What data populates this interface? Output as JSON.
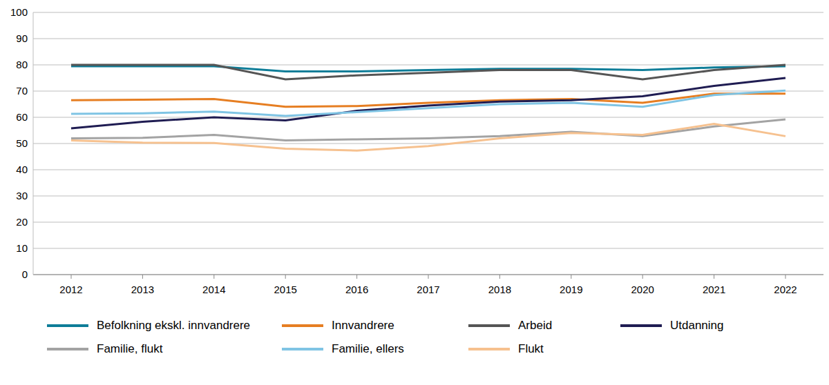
{
  "chart_data": {
    "type": "line",
    "categories": [
      "2012",
      "2013",
      "2014",
      "2015",
      "2016",
      "2017",
      "2018",
      "2019",
      "2020",
      "2021",
      "2022"
    ],
    "series": [
      {
        "name": "Befolkning ekskl. innvandrere",
        "color": "#0e7d98",
        "values": [
          79.5,
          79.5,
          79.5,
          77.5,
          77.5,
          78,
          78.5,
          78.5,
          78,
          79,
          79.5
        ]
      },
      {
        "name": "Innvandrere",
        "color": "#e67e22",
        "values": [
          66.5,
          66.7,
          67,
          64,
          64.3,
          65.5,
          66.5,
          67,
          65.5,
          69,
          69
        ]
      },
      {
        "name": "Arbeid",
        "color": "#555555",
        "values": [
          80,
          80,
          80,
          74.5,
          76,
          77,
          78,
          78,
          74.5,
          78,
          80
        ]
      },
      {
        "name": "Utdanning",
        "color": "#1f1c52",
        "values": [
          55.8,
          58.3,
          60,
          58.8,
          62.5,
          64.5,
          66,
          66.5,
          68,
          72,
          75
        ]
      },
      {
        "name": "Familie, flukt",
        "color": "#a3a3a3",
        "values": [
          52,
          52.2,
          53.3,
          51.2,
          51.6,
          52,
          52.8,
          54.5,
          52.8,
          56.5,
          59.2
        ]
      },
      {
        "name": "Familie, ellers",
        "color": "#7fc4e4",
        "values": [
          61.3,
          61.5,
          62.2,
          60.5,
          62,
          63.5,
          65,
          65.5,
          64,
          68.5,
          70.2
        ]
      },
      {
        "name": "Flukt",
        "color": "#f6c18f",
        "values": [
          51.2,
          50.3,
          50.2,
          48,
          47.3,
          49,
          52,
          54,
          53.3,
          57.5,
          52.8
        ]
      }
    ],
    "ylim": [
      0,
      100
    ],
    "yticks": [
      0,
      10,
      20,
      30,
      40,
      50,
      60,
      70,
      80,
      90,
      100
    ],
    "grid": true,
    "legend": "bottom"
  }
}
